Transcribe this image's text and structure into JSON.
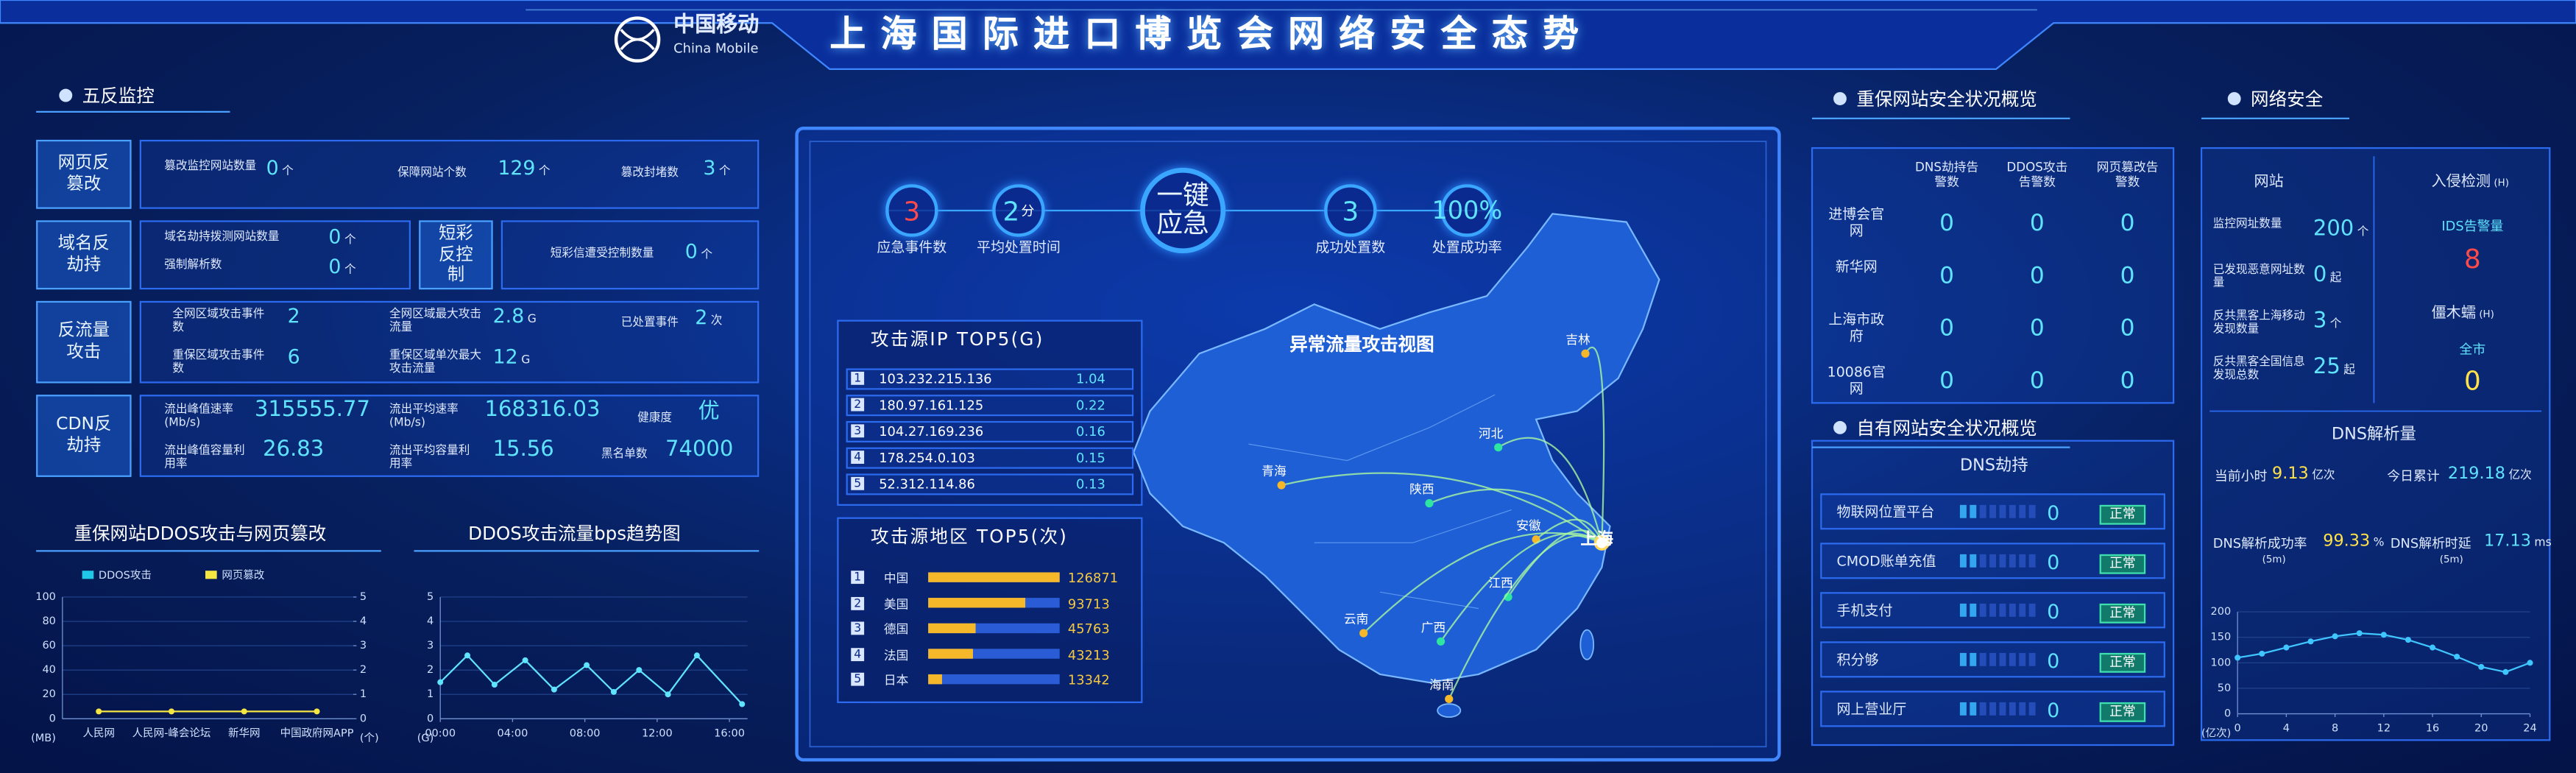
{
  "header": {
    "logo_cn": "中国移动",
    "logo_en": "China Mobile",
    "title": "上海国际进口博览会网络安全态势"
  },
  "five_anti": {
    "title": "五反监控",
    "tamper": {
      "label": "网页反篡改",
      "items": [
        {
          "label": "篡改监控网站数量",
          "value": 0,
          "unit": "个"
        },
        {
          "label": "保障网站个数",
          "value": 129,
          "unit": "个"
        },
        {
          "label": "篡改封堵数",
          "value": 3,
          "unit": "个"
        }
      ]
    },
    "dns": {
      "label": "域名反劫持",
      "items": [
        {
          "label": "域名劫持拨测网站数量",
          "value": 0,
          "unit": "个"
        },
        {
          "label": "强制解析数",
          "value": 0,
          "unit": "个"
        }
      ]
    },
    "sms": {
      "label": "短彩反控制",
      "items": [
        {
          "label": "短彩信遭受控制数量",
          "value": 0,
          "unit": "个"
        }
      ]
    },
    "ddos": {
      "label": "反流量攻击",
      "items": [
        {
          "label": "全网区域攻击事件数",
          "value": 2
        },
        {
          "label": "重保区域攻击事件数",
          "value": 6
        },
        {
          "label": "全网区域最大攻击流量",
          "value": 2.8,
          "unit": "G"
        },
        {
          "label": "重保区域单次最大攻击流量",
          "value": 12,
          "unit": "G"
        },
        {
          "label": "已处置事件",
          "value": 2,
          "unit": "次"
        }
      ]
    },
    "cdn": {
      "label": "CDN反劫持",
      "items": [
        {
          "label": "流出峰值速率(Mb/s)",
          "value": 315555.77
        },
        {
          "label": "流出峰值容量利用率",
          "value": 26.83
        },
        {
          "label": "流出平均速率(Mb/s)",
          "value": 168316.03
        },
        {
          "label": "流出平均容量利用率",
          "value": 15.56
        },
        {
          "label": "健康度",
          "value": "优"
        },
        {
          "label": "黑名单数",
          "value": 74000
        }
      ]
    }
  },
  "chart_data": [
    {
      "type": "bar",
      "title": "重保网站DDOS攻击与网页篡改",
      "categories": [
        "人民网",
        "人民网-峰会论坛",
        "新华网",
        "中国政府网APP"
      ],
      "series": [
        {
          "name": "DDOS攻击",
          "color": "#1ec8e6",
          "values": [
            0,
            0,
            0,
            0
          ]
        },
        {
          "name": "网页篡改",
          "color": "#f5e642",
          "type": "line",
          "axis": "y2",
          "values": [
            0.3,
            0.3,
            0.3,
            0.3
          ]
        }
      ],
      "ylim": [
        0,
        100
      ],
      "yticks": [
        0,
        20,
        40,
        60,
        80,
        100
      ],
      "y2lim": [
        0,
        5
      ],
      "y2ticks": [
        0,
        1,
        2,
        3,
        4,
        5
      ],
      "ylabel": "(MB)",
      "y2label": "(个)",
      "grid": true
    },
    {
      "type": "line",
      "title": "DDOS攻击流量bps趋势图",
      "x": [
        0,
        1.5,
        3,
        4.7,
        6.3,
        8.1,
        9.6,
        11,
        12.6,
        14.2,
        16.7
      ],
      "values": [
        1.5,
        2.6,
        1.4,
        2.4,
        1.2,
        2.2,
        1.1,
        2.0,
        1.0,
        2.6,
        0.6
      ],
      "color": "#5fe3ff",
      "xlim": [
        0,
        17
      ],
      "xticks": [
        {
          "value": 0,
          "label": "00:00"
        },
        {
          "value": 4,
          "label": "04:00"
        },
        {
          "value": 8,
          "label": "08:00"
        },
        {
          "value": 12,
          "label": "12:00"
        },
        {
          "value": 16,
          "label": "16:00"
        }
      ],
      "ylim": [
        0,
        5
      ],
      "yticks": [
        0,
        1,
        2,
        3,
        4,
        5
      ],
      "ylabel": "(G)",
      "grid": true
    },
    {
      "type": "line",
      "x": [
        0,
        2,
        4,
        6,
        8,
        10,
        12,
        14,
        16,
        18,
        20,
        22,
        24
      ],
      "values": [
        110,
        118,
        130,
        142,
        152,
        158,
        155,
        145,
        130,
        112,
        92,
        82,
        100
      ],
      "color": "#3fc6ff",
      "xlim": [
        0,
        24
      ],
      "xticks": [
        0,
        4,
        8,
        12,
        16,
        20,
        24
      ],
      "ylim": [
        0,
        200
      ],
      "yticks": [
        0,
        50,
        100,
        150,
        200
      ],
      "ylabel": "(亿次)",
      "grid": true
    }
  ],
  "response": {
    "stats": [
      {
        "value": 3,
        "label": "应急事件数"
      },
      {
        "value": 2,
        "unit": "分",
        "label": "平均处置时间"
      },
      {
        "value": 3,
        "label": "成功处置数"
      },
      {
        "value": "100%",
        "label": "处置成功率"
      }
    ],
    "button": "一键应急"
  },
  "map": {
    "title": "异常流量攻击视图",
    "target": "上海",
    "cities": [
      "吉林",
      "河北",
      "青海",
      "陕西",
      "安徽",
      "江西",
      "云南",
      "广西",
      "海南"
    ]
  },
  "ip_top5": {
    "title": "攻击源IP TOP5(G)",
    "rows": [
      {
        "rank": 1,
        "ip": "103.232.215.136",
        "value": 1.04
      },
      {
        "rank": 2,
        "ip": "180.97.161.125",
        "value": 0.22
      },
      {
        "rank": 3,
        "ip": "104.27.169.236",
        "value": 0.16
      },
      {
        "rank": 4,
        "ip": "178.254.0.103",
        "value": 0.15
      },
      {
        "rank": 5,
        "ip": "52.312.114.86",
        "value": 0.13
      }
    ]
  },
  "region_top5": {
    "title": "攻击源地区 TOP5(次)",
    "rows": [
      {
        "rank": 1,
        "name": "中国",
        "value": 126871
      },
      {
        "rank": 2,
        "name": "美国",
        "value": 93713
      },
      {
        "rank": 3,
        "name": "德国",
        "value": 45763
      },
      {
        "rank": 4,
        "name": "法国",
        "value": 43213
      },
      {
        "rank": 5,
        "name": "日本",
        "value": 13342
      }
    ]
  },
  "key_sites": {
    "title": "重保网站安全状况概览",
    "columns": [
      "DNS劫持告警数",
      "DDOS攻击告警数",
      "网页篡改告警数"
    ],
    "rows": [
      {
        "name": "进博会官网",
        "values": [
          0,
          0,
          0
        ]
      },
      {
        "name": "新华网",
        "values": [
          0,
          0,
          0
        ]
      },
      {
        "name": "上海市政府",
        "values": [
          0,
          0,
          0
        ]
      },
      {
        "name": "10086官网",
        "values": [
          0,
          0,
          0
        ]
      }
    ]
  },
  "own_sites": {
    "title": "自有网站安全状况概览",
    "subtitle": "DNS劫持",
    "rows": [
      {
        "name": "物联网位置平台",
        "value": 0,
        "status": "正常"
      },
      {
        "name": "CMOD账单充值",
        "value": 0,
        "status": "正常"
      },
      {
        "name": "手机支付",
        "value": 0,
        "status": "正常"
      },
      {
        "name": "积分够",
        "value": 0,
        "status": "正常"
      },
      {
        "name": "网上营业厅",
        "value": 0,
        "status": "正常"
      }
    ]
  },
  "network": {
    "title": "网络安全",
    "website": {
      "title": "网站",
      "items": [
        {
          "label": "监控网址数量",
          "value": 200,
          "unit": "个"
        },
        {
          "label": "已发现恶意网址数量",
          "value": 0,
          "unit": "起"
        },
        {
          "label": "反共黑客上海移动发现数量",
          "value": 3,
          "unit": "个"
        },
        {
          "label": "反共黑客全国信息发现总数",
          "value": 25,
          "unit": "起"
        }
      ]
    },
    "ids": {
      "title": "入侵检测",
      "unit": "(H)",
      "label": "IDS告警量",
      "value": 8
    },
    "botnet": {
      "title": "僵木蠕",
      "unit": "(H)",
      "label": "全市",
      "value": 0
    },
    "dns": {
      "title": "DNS解析量",
      "items": [
        {
          "label": "当前小时",
          "value": 9.13,
          "unit": "亿次"
        },
        {
          "label": "今日累计",
          "value": 219.18,
          "unit": "亿次"
        },
        {
          "label": "DNS解析成功率",
          "sub": "(5m)",
          "value": 99.33,
          "unit": "%"
        },
        {
          "label": "DNS解析时延",
          "sub": "(5m)",
          "value": 17.13,
          "unit": "ms"
        }
      ]
    }
  }
}
